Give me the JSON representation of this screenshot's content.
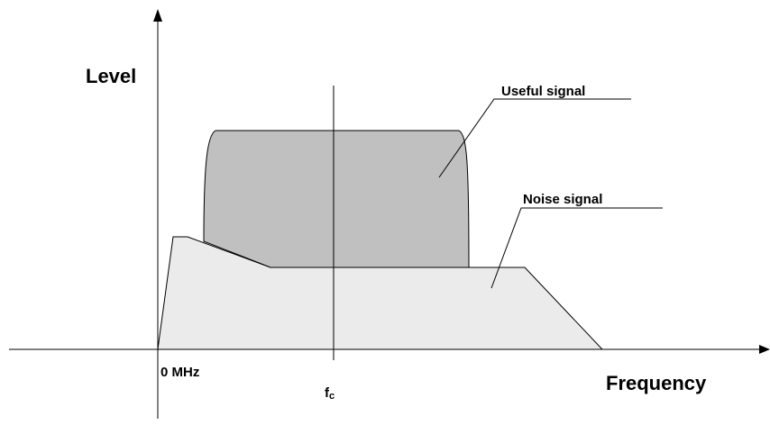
{
  "axis_labels": {
    "y": "Level",
    "x": "Frequency",
    "origin": "0 MHz",
    "center": {
      "main": "f",
      "sub": "c"
    }
  },
  "regions": [
    {
      "label": "Useful signal"
    },
    {
      "label": "Noise signal"
    }
  ]
}
